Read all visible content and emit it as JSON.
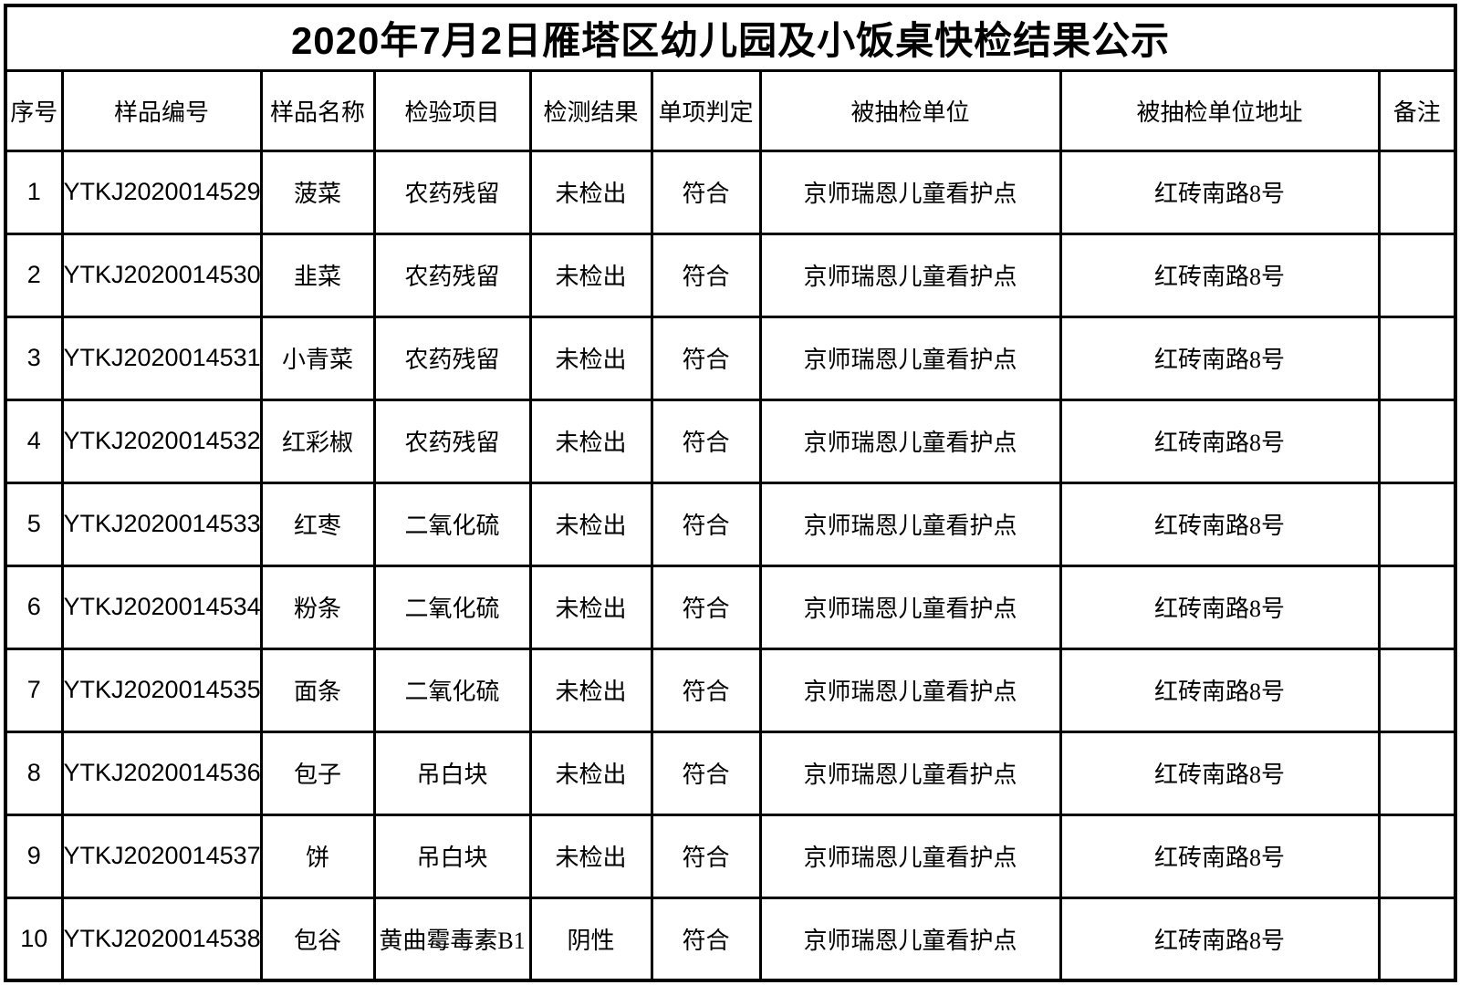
{
  "page_title": "2020年7月2日雁塔区幼儿园及小饭桌快检结果公示",
  "table": {
    "columns": [
      {
        "key": "no",
        "label": "序号"
      },
      {
        "key": "sample_id",
        "label": "样品编号"
      },
      {
        "key": "sample_name",
        "label": "样品名称"
      },
      {
        "key": "test_item",
        "label": "检验项目"
      },
      {
        "key": "test_result",
        "label": "检测结果"
      },
      {
        "key": "judgment",
        "label": "单项判定"
      },
      {
        "key": "sampled_unit",
        "label": "被抽检单位"
      },
      {
        "key": "sampled_unit_address",
        "label": "被抽检单位地址"
      },
      {
        "key": "remark",
        "label": "备注"
      }
    ],
    "rows": [
      {
        "no": "1",
        "sample_id": "YTKJ2020014529",
        "sample_name": "菠菜",
        "test_item": "农药残留",
        "test_result": "未检出",
        "judgment": "符合",
        "sampled_unit": "京师瑞恩儿童看护点",
        "sampled_unit_address": "红砖南路8号",
        "remark": ""
      },
      {
        "no": "2",
        "sample_id": "YTKJ2020014530",
        "sample_name": "韭菜",
        "test_item": "农药残留",
        "test_result": "未检出",
        "judgment": "符合",
        "sampled_unit": "京师瑞恩儿童看护点",
        "sampled_unit_address": "红砖南路8号",
        "remark": ""
      },
      {
        "no": "3",
        "sample_id": "YTKJ2020014531",
        "sample_name": "小青菜",
        "test_item": "农药残留",
        "test_result": "未检出",
        "judgment": "符合",
        "sampled_unit": "京师瑞恩儿童看护点",
        "sampled_unit_address": "红砖南路8号",
        "remark": ""
      },
      {
        "no": "4",
        "sample_id": "YTKJ2020014532",
        "sample_name": "红彩椒",
        "test_item": "农药残留",
        "test_result": "未检出",
        "judgment": "符合",
        "sampled_unit": "京师瑞恩儿童看护点",
        "sampled_unit_address": "红砖南路8号",
        "remark": ""
      },
      {
        "no": "5",
        "sample_id": "YTKJ2020014533",
        "sample_name": "红枣",
        "test_item": "二氧化硫",
        "test_result": "未检出",
        "judgment": "符合",
        "sampled_unit": "京师瑞恩儿童看护点",
        "sampled_unit_address": "红砖南路8号",
        "remark": ""
      },
      {
        "no": "6",
        "sample_id": "YTKJ2020014534",
        "sample_name": "粉条",
        "test_item": "二氧化硫",
        "test_result": "未检出",
        "judgment": "符合",
        "sampled_unit": "京师瑞恩儿童看护点",
        "sampled_unit_address": "红砖南路8号",
        "remark": ""
      },
      {
        "no": "7",
        "sample_id": "YTKJ2020014535",
        "sample_name": "面条",
        "test_item": "二氧化硫",
        "test_result": "未检出",
        "judgment": "符合",
        "sampled_unit": "京师瑞恩儿童看护点",
        "sampled_unit_address": "红砖南路8号",
        "remark": ""
      },
      {
        "no": "8",
        "sample_id": "YTKJ2020014536",
        "sample_name": "包子",
        "test_item": "吊白块",
        "test_result": "未检出",
        "judgment": "符合",
        "sampled_unit": "京师瑞恩儿童看护点",
        "sampled_unit_address": "红砖南路8号",
        "remark": ""
      },
      {
        "no": "9",
        "sample_id": "YTKJ2020014537",
        "sample_name": "饼",
        "test_item": "吊白块",
        "test_result": "未检出",
        "judgment": "符合",
        "sampled_unit": "京师瑞恩儿童看护点",
        "sampled_unit_address": "红砖南路8号",
        "remark": ""
      },
      {
        "no": "10",
        "sample_id": "YTKJ2020014538",
        "sample_name": "包谷",
        "test_item": "黄曲霉毒素B1",
        "test_result": "阴性",
        "judgment": "符合",
        "sampled_unit": "京师瑞恩儿童看护点",
        "sampled_unit_address": "红砖南路8号",
        "remark": ""
      }
    ]
  },
  "colors": {
    "border": "#000000",
    "text": "#000000",
    "background": "#ffffff"
  }
}
